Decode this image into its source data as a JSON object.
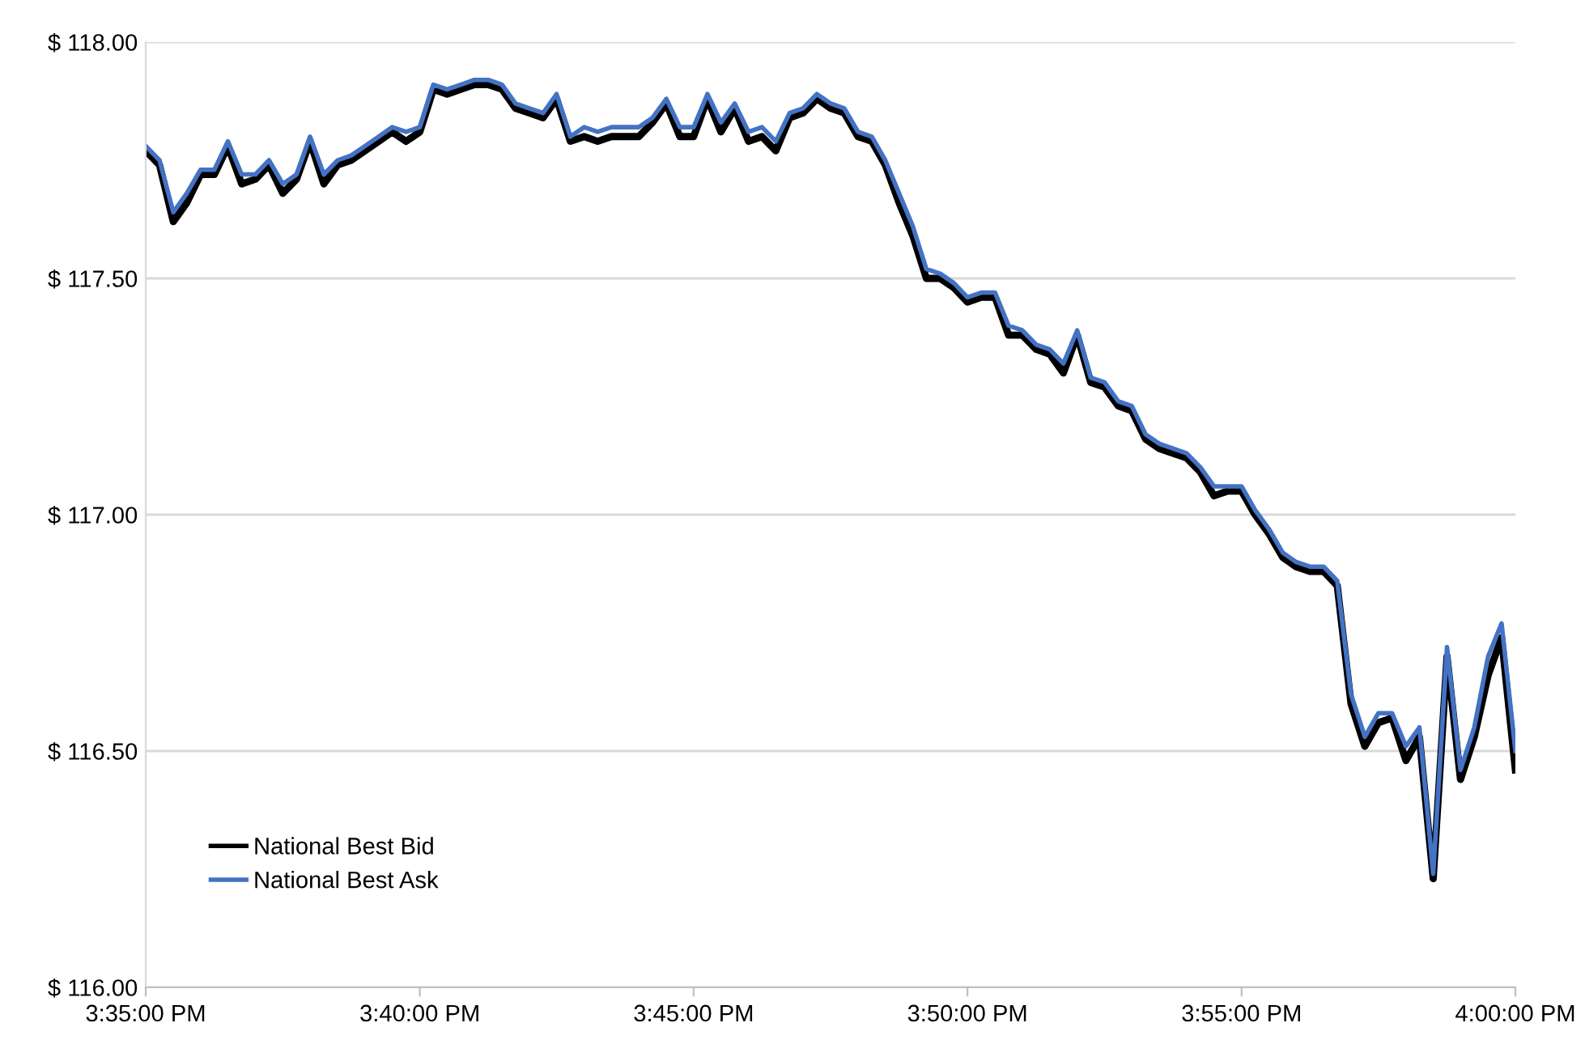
{
  "chart_data": {
    "type": "line",
    "x": [
      15.5833,
      15.5875,
      15.5917,
      15.5958,
      15.6,
      15.6042,
      15.6083,
      15.6125,
      15.6167,
      15.6208,
      15.625,
      15.6292,
      15.6333,
      15.6375,
      15.6417,
      15.6458,
      15.65,
      15.6542,
      15.6583,
      15.6625,
      15.6667,
      15.6708,
      15.675,
      15.6792,
      15.6833,
      15.6875,
      15.6917,
      15.6958,
      15.7,
      15.7042,
      15.7083,
      15.7125,
      15.7167,
      15.7208,
      15.725,
      15.7292,
      15.7333,
      15.7375,
      15.7417,
      15.7458,
      15.75,
      15.7542,
      15.7583,
      15.7625,
      15.7667,
      15.7708,
      15.775,
      15.7792,
      15.7833,
      15.7875,
      15.7917,
      15.7958,
      15.8,
      15.8042,
      15.8083,
      15.8125,
      15.8167,
      15.8208,
      15.825,
      15.8292,
      15.8333,
      15.8375,
      15.8417,
      15.8458,
      15.85,
      15.8542,
      15.8583,
      15.8625,
      15.8667,
      15.8708,
      15.875,
      15.8792,
      15.8833,
      15.8875,
      15.8917,
      15.8958,
      15.9,
      15.9042,
      15.9083,
      15.9125,
      15.9167,
      15.9208,
      15.925,
      15.9292,
      15.9333,
      15.9375,
      15.9417,
      15.9458,
      15.95,
      15.9542,
      15.9583,
      15.9625,
      15.9667,
      15.9708,
      15.975,
      15.9792,
      15.9833,
      15.9875,
      15.9917,
      15.9958,
      16.0
    ],
    "series": [
      {
        "name": "National Best Bid",
        "color": "#000000",
        "values": [
          117.77,
          117.74,
          117.62,
          117.66,
          117.72,
          117.72,
          117.78,
          117.7,
          117.71,
          117.74,
          117.68,
          117.71,
          117.79,
          117.7,
          117.74,
          117.75,
          117.77,
          117.79,
          117.81,
          117.79,
          117.81,
          117.9,
          117.89,
          117.9,
          117.91,
          117.91,
          117.9,
          117.86,
          117.85,
          117.84,
          117.88,
          117.79,
          117.8,
          117.79,
          117.8,
          117.8,
          117.8,
          117.83,
          117.87,
          117.8,
          117.8,
          117.88,
          117.81,
          117.86,
          117.79,
          117.8,
          117.77,
          117.84,
          117.85,
          117.88,
          117.86,
          117.85,
          117.8,
          117.79,
          117.74,
          117.66,
          117.59,
          117.5,
          117.5,
          117.48,
          117.45,
          117.46,
          117.46,
          117.38,
          117.38,
          117.35,
          117.34,
          117.3,
          117.38,
          117.28,
          117.27,
          117.23,
          117.22,
          117.16,
          117.14,
          117.13,
          117.12,
          117.09,
          117.04,
          117.05,
          117.05,
          117.0,
          116.96,
          116.91,
          116.89,
          116.88,
          116.88,
          116.85,
          116.6,
          116.51,
          116.56,
          116.57,
          116.48,
          116.53,
          116.23,
          116.7,
          116.44,
          116.53,
          116.66,
          116.74,
          116.46
        ]
      },
      {
        "name": "National Best Ask",
        "color": "#4472c4",
        "values": [
          117.78,
          117.75,
          117.64,
          117.68,
          117.73,
          117.73,
          117.79,
          117.72,
          117.72,
          117.75,
          117.7,
          117.72,
          117.8,
          117.72,
          117.75,
          117.76,
          117.78,
          117.8,
          117.82,
          117.81,
          117.82,
          117.91,
          117.9,
          117.91,
          117.92,
          117.92,
          117.91,
          117.87,
          117.86,
          117.85,
          117.89,
          117.8,
          117.82,
          117.81,
          117.82,
          117.82,
          117.82,
          117.84,
          117.88,
          117.82,
          117.82,
          117.89,
          117.83,
          117.87,
          117.81,
          117.82,
          117.79,
          117.85,
          117.86,
          117.89,
          117.87,
          117.86,
          117.81,
          117.8,
          117.75,
          117.68,
          117.61,
          117.52,
          117.51,
          117.49,
          117.46,
          117.47,
          117.47,
          117.4,
          117.39,
          117.36,
          117.35,
          117.32,
          117.39,
          117.29,
          117.28,
          117.24,
          117.23,
          117.17,
          117.15,
          117.14,
          117.13,
          117.1,
          117.06,
          117.06,
          117.06,
          117.01,
          116.97,
          116.92,
          116.9,
          116.89,
          116.89,
          116.86,
          116.62,
          116.53,
          116.58,
          116.58,
          116.51,
          116.55,
          116.24,
          116.72,
          116.46,
          116.55,
          116.7,
          116.77,
          116.5
        ]
      }
    ],
    "xlim": [
      15.5833,
      16.0
    ],
    "xticks": [
      {
        "value": 15.5833,
        "label": "3:35:00 PM"
      },
      {
        "value": 15.6667,
        "label": "3:40:00 PM"
      },
      {
        "value": 15.75,
        "label": "3:45:00 PM"
      },
      {
        "value": 15.8333,
        "label": "3:50:00 PM"
      },
      {
        "value": 15.9167,
        "label": "3:55:00 PM"
      },
      {
        "value": 16.0,
        "label": "4:00:00 PM"
      }
    ],
    "ylim": [
      116.0,
      118.0
    ],
    "yticks": [
      {
        "value": 116.0,
        "label": "$ 116.00"
      },
      {
        "value": 116.5,
        "label": "$ 116.50"
      },
      {
        "value": 117.0,
        "label": "$ 117.00"
      },
      {
        "value": 117.5,
        "label": "$ 117.50"
      },
      {
        "value": 118.0,
        "label": "$ 118.00"
      }
    ],
    "grid": "y",
    "legend": "bottom left",
    "marker": "none",
    "line_style": "solid"
  }
}
